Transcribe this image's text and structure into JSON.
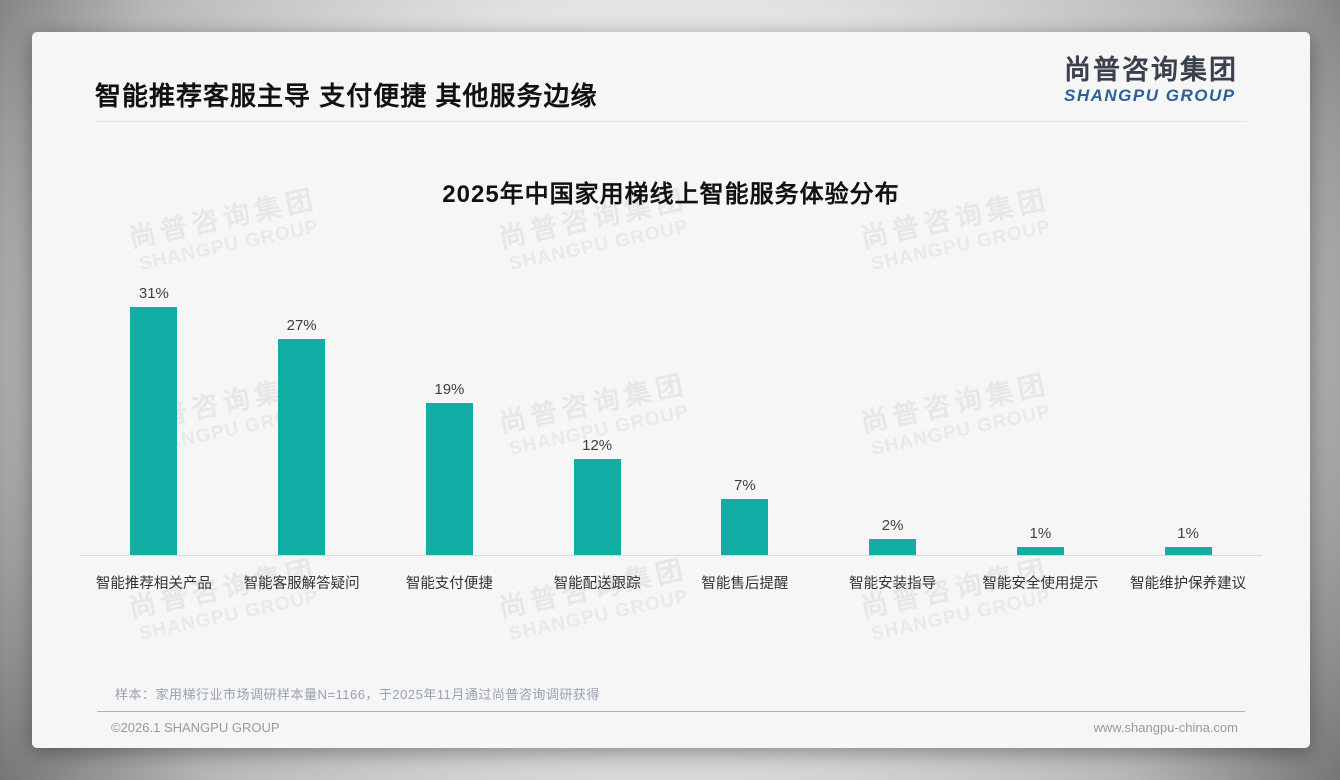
{
  "page": {
    "title": "智能推荐客服主导 支付便捷 其他服务边缘"
  },
  "logo": {
    "name_cn": "尚普咨询集团",
    "name_en": "SHANGPU GROUP",
    "en_color": "#2b5f9e"
  },
  "chart_data": {
    "type": "bar",
    "title": "2025年中国家用梯线上智能服务体验分布",
    "categories": [
      "智能推荐相关产品",
      "智能客服解答疑问",
      "智能支付便捷",
      "智能配送跟踪",
      "智能售后提醒",
      "智能安装指导",
      "智能安全使用提示",
      "智能维护保养建议"
    ],
    "values": [
      31,
      27,
      19,
      12,
      7,
      2,
      1,
      1
    ],
    "unit": "%",
    "value_label_position": "above-bar",
    "bar_color": "#12ada4",
    "ylim": [
      0,
      35
    ],
    "grid": false,
    "legend": "none"
  },
  "footnote": "样本：家用梯行业市场调研样本量N=1166，于2025年11月通过尚普咨询调研获得",
  "footer": {
    "copyright": "©2026.1 SHANGPU GROUP",
    "website": "www.shangpu-china.com"
  },
  "watermark": {
    "line1": "尚普咨询集团",
    "line2": "SHANGPU GROUP"
  }
}
